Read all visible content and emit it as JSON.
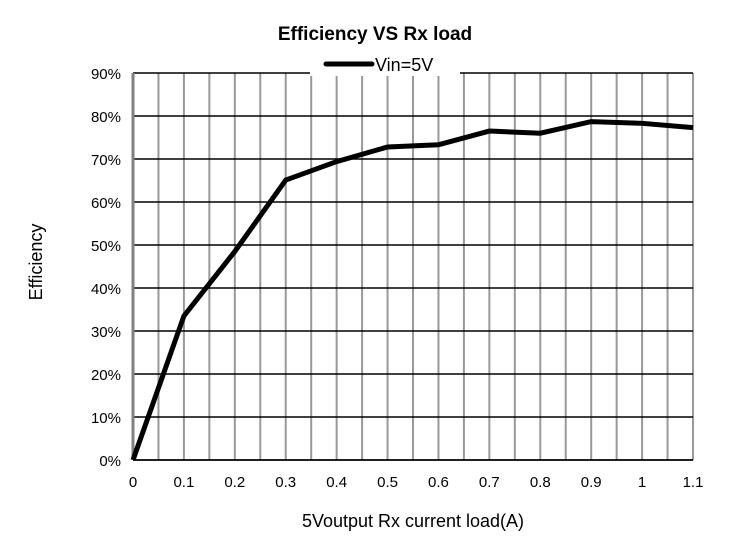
{
  "chart_data": {
    "type": "line",
    "title": "Efficiency VS Rx load",
    "xlabel": "5Voutput  Rx current load(A)",
    "ylabel": "Efficiency",
    "xlim": [
      0,
      1.1
    ],
    "ylim": [
      0,
      90
    ],
    "grid": true,
    "legend_position": "top-center",
    "x_ticks": [
      "0",
      "0.1",
      "0.2",
      "0.3",
      "0.4",
      "0.5",
      "0.6",
      "0.7",
      "0.8",
      "0.9",
      "1",
      "1.1"
    ],
    "y_ticks": [
      "0%",
      "10%",
      "20%",
      "30%",
      "40%",
      "50%",
      "60%",
      "70%",
      "80%",
      "90%"
    ],
    "x": [
      0,
      0.1,
      0.2,
      0.3,
      0.4,
      0.5,
      0.6,
      0.7,
      0.8,
      0.9,
      1.0,
      1.1
    ],
    "series": [
      {
        "name": "Vin=5V",
        "color": "#000000",
        "values": [
          0,
          33.5,
          48.5,
          65.1,
          69.4,
          72.8,
          73.3,
          76.5,
          76.0,
          78.7,
          78.3,
          77.3
        ]
      }
    ]
  }
}
